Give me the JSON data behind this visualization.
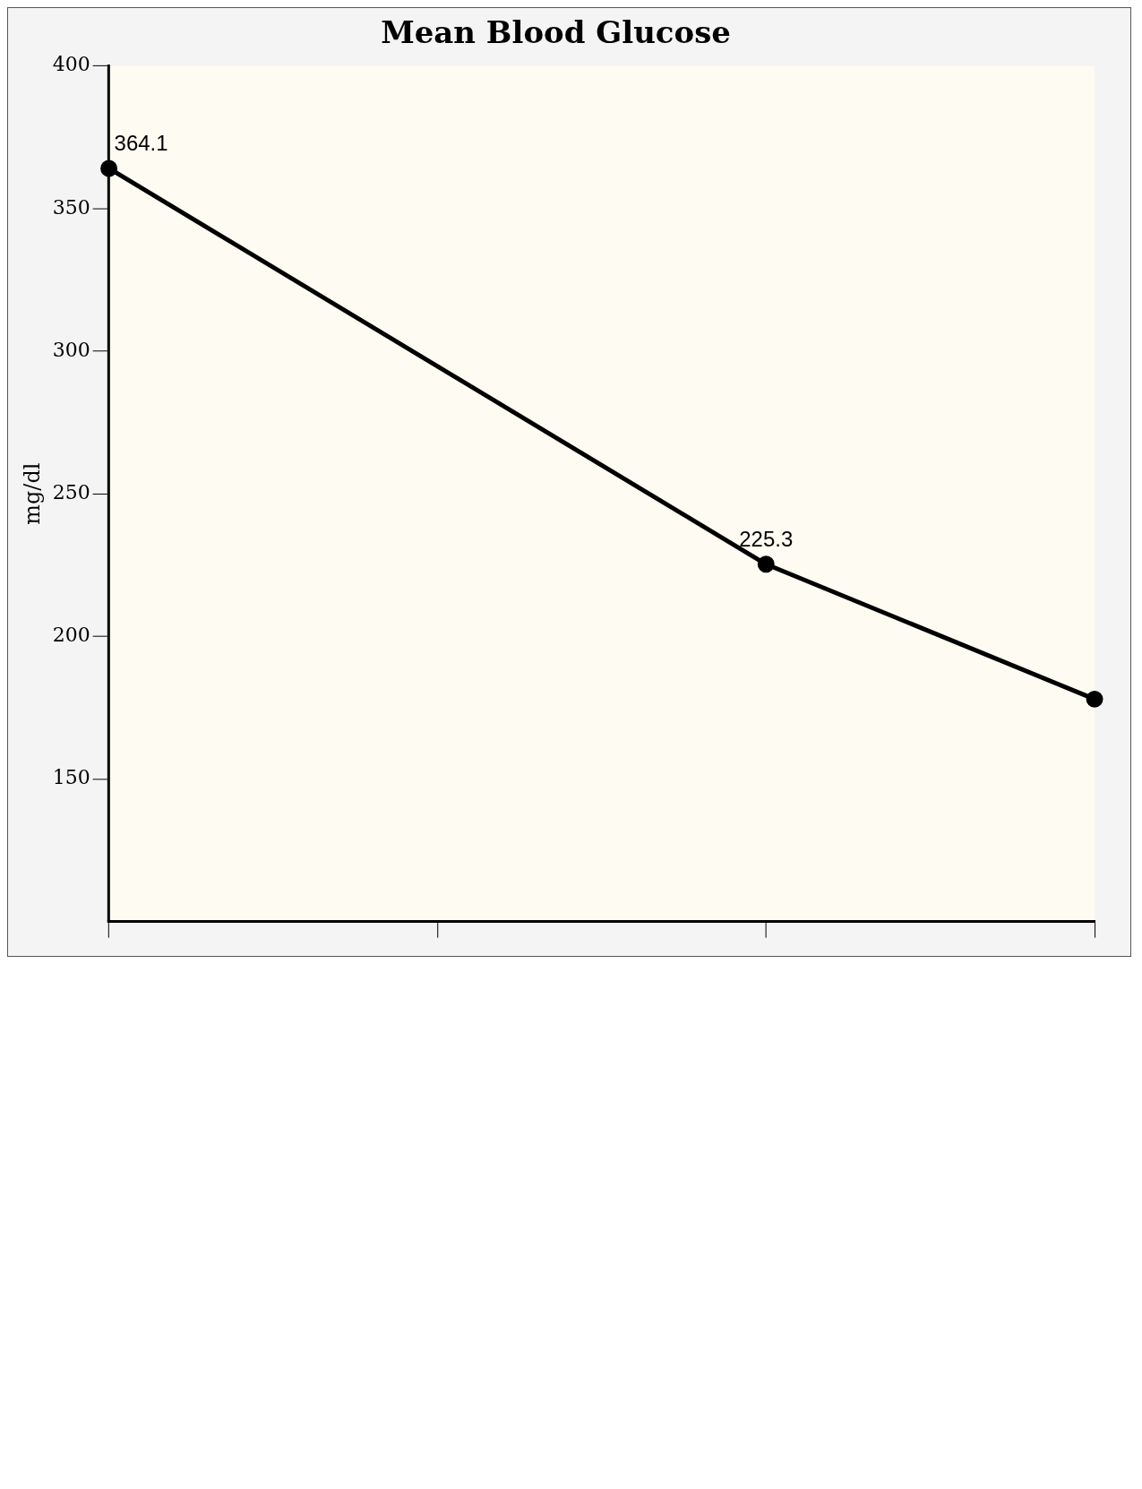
{
  "chart_data": {
    "type": "line",
    "title": "Mean Blood Glucose",
    "ylabel": "mg/dl",
    "categories": [
      null,
      null,
      null,
      null
    ],
    "series": [
      {
        "color": "#000000",
        "values": [
          364.1,
          null,
          225.3,
          178
        ],
        "value_labels": [
          "364.1",
          null,
          "225.3",
          null
        ]
      }
    ],
    "ylim": [
      100,
      400
    ],
    "yticks": [
      150,
      200,
      250,
      300,
      350,
      400
    ],
    "grid": false,
    "legend": false,
    "marker": "circle",
    "line_style": "solid"
  }
}
